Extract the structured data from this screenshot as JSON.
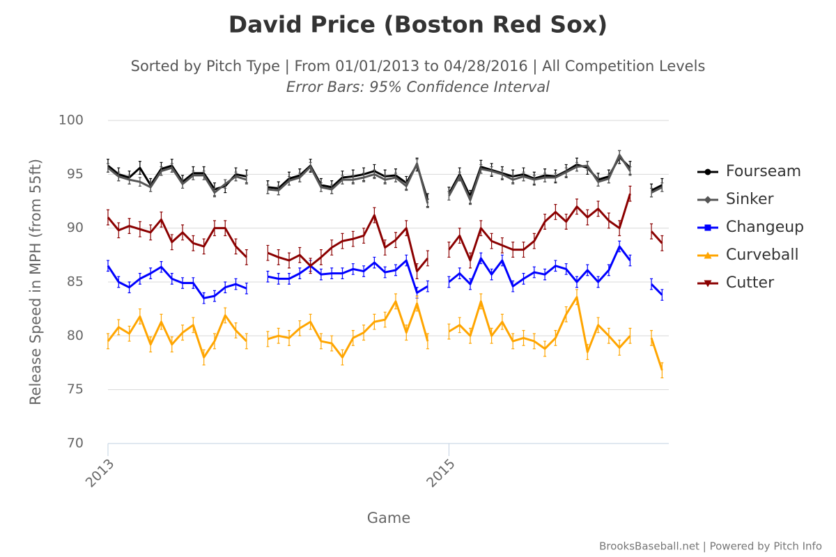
{
  "chart_data": {
    "type": "line",
    "title": "David Price (Boston Red Sox)",
    "subtitle": "Sorted by Pitch Type | From 01/01/2013 to 04/28/2016 | All Competition Levels",
    "subtitle2": "Error Bars: 95% Confidence Interval",
    "xlabel": "Game",
    "ylabel": "Release Speed in MPH (from 55ft)",
    "credit": "BrooksBaseball.net | Powered by Pitch Info",
    "ylim": [
      70,
      100
    ],
    "yticks": [
      70,
      75,
      80,
      85,
      90,
      95,
      100
    ],
    "xlim": [
      0,
      52.5
    ],
    "xticks": [
      {
        "value": 0,
        "label": "2013"
      },
      {
        "value": 32,
        "label": "2015"
      }
    ],
    "grid": true,
    "legend": "right",
    "x": [
      0,
      1,
      2,
      3,
      4,
      5,
      6,
      7,
      8,
      9,
      10,
      11,
      12,
      13,
      14,
      15,
      16,
      17,
      18,
      19,
      20,
      21,
      22,
      23,
      24,
      25,
      26,
      27,
      28,
      29,
      30,
      31,
      32,
      33,
      34,
      35,
      36,
      37,
      38,
      39,
      40,
      41,
      42,
      43,
      44,
      45,
      46,
      47,
      48,
      49,
      50,
      51,
      52
    ],
    "series": [
      {
        "name": "Fourseam",
        "color": "#000000",
        "marker": "circle",
        "error": 0.6,
        "values": [
          95.8,
          95.0,
          94.7,
          95.6,
          94.0,
          95.5,
          95.8,
          94.3,
          95.1,
          95.1,
          93.6,
          93.9,
          95.0,
          94.8,
          null,
          93.8,
          93.7,
          94.6,
          94.9,
          95.8,
          94.0,
          93.8,
          94.7,
          94.8,
          95.0,
          95.3,
          94.8,
          94.9,
          94.2,
          95.9,
          92.6,
          null,
          93.2,
          95.0,
          92.9,
          95.7,
          95.4,
          95.1,
          94.8,
          95.0,
          94.6,
          94.9,
          94.8,
          95.3,
          95.9,
          95.6,
          94.5,
          94.8,
          96.6,
          95.6,
          null,
          93.5,
          94.0
        ]
      },
      {
        "name": "Sinker",
        "color": "#555555",
        "marker": "diamond",
        "error": 0.4,
        "values": [
          95.6,
          94.8,
          94.5,
          94.3,
          93.8,
          95.3,
          95.6,
          94.1,
          94.9,
          94.9,
          93.3,
          94.1,
          94.8,
          94.5,
          null,
          93.6,
          93.5,
          94.4,
          94.7,
          95.7,
          93.8,
          93.6,
          94.5,
          94.5,
          94.7,
          95.0,
          94.5,
          94.7,
          93.9,
          96.0,
          92.3,
          null,
          93.0,
          94.8,
          92.6,
          95.5,
          95.3,
          95.0,
          94.5,
          94.8,
          94.5,
          94.7,
          94.7,
          95.2,
          95.7,
          95.8,
          94.3,
          94.6,
          96.8,
          95.3,
          null,
          93.3,
          93.8
        ]
      },
      {
        "name": "Changeup",
        "color": "#0000ff",
        "marker": "square",
        "error": 0.5,
        "values": [
          86.5,
          85.0,
          84.5,
          85.3,
          85.8,
          86.4,
          85.3,
          84.9,
          84.9,
          83.5,
          83.7,
          84.5,
          84.8,
          84.4,
          null,
          85.5,
          85.3,
          85.3,
          85.8,
          86.5,
          85.7,
          85.8,
          85.8,
          86.2,
          86.0,
          86.8,
          85.9,
          86.1,
          87.0,
          84.0,
          84.6,
          null,
          85.0,
          85.8,
          84.8,
          87.2,
          85.7,
          87.0,
          84.6,
          85.3,
          85.9,
          85.7,
          86.5,
          86.2,
          85.0,
          86.1,
          85.0,
          86.1,
          88.3,
          87.0,
          null,
          84.8,
          83.8
        ]
      },
      {
        "name": "Curveball",
        "color": "#ffa500",
        "marker": "triangle",
        "error": 0.7,
        "values": [
          79.5,
          80.8,
          80.2,
          81.8,
          79.2,
          81.3,
          79.2,
          80.3,
          81.0,
          78.0,
          79.5,
          81.9,
          80.5,
          79.5,
          null,
          79.7,
          80.0,
          79.8,
          80.7,
          81.3,
          79.5,
          79.3,
          78.0,
          79.8,
          80.3,
          81.3,
          81.5,
          83.2,
          80.3,
          83.0,
          79.5,
          null,
          80.4,
          81.0,
          80.0,
          83.2,
          80.0,
          81.3,
          79.5,
          79.8,
          79.5,
          78.8,
          79.8,
          82.0,
          83.6,
          78.5,
          81.0,
          80.0,
          78.9,
          80.0,
          null,
          79.8,
          76.8
        ]
      },
      {
        "name": "Cutter",
        "color": "#8b0000",
        "marker": "triangle-down",
        "error": 0.7,
        "values": [
          91.0,
          89.8,
          90.2,
          89.9,
          89.6,
          90.8,
          88.7,
          89.6,
          88.6,
          88.3,
          90.0,
          90.0,
          88.3,
          87.3,
          null,
          87.7,
          87.3,
          87.0,
          87.5,
          86.5,
          87.3,
          88.2,
          88.8,
          89.0,
          89.3,
          91.2,
          88.2,
          88.9,
          90.0,
          86.0,
          87.2,
          null,
          88.0,
          89.3,
          87.0,
          90.0,
          88.8,
          88.4,
          88.0,
          88.0,
          88.8,
          90.6,
          91.5,
          90.6,
          92.0,
          91.0,
          91.8,
          90.7,
          90.0,
          93.2,
          null,
          89.7,
          88.6
        ]
      }
    ]
  }
}
